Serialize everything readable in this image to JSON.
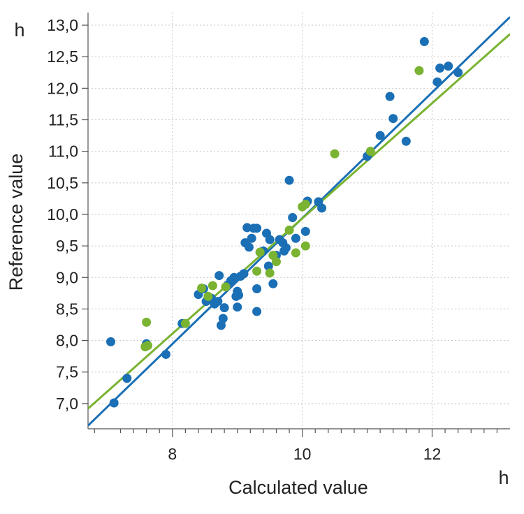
{
  "chart_data": {
    "type": "scatter",
    "x_unit": "h",
    "y_unit": "h",
    "xlabel": "Calculated value",
    "ylabel": "Reference value",
    "xlim": [
      6.7,
      13.2
    ],
    "ylim": [
      6.6,
      13.2
    ],
    "x_ticks": [
      {
        "value": 8,
        "label": "8"
      },
      {
        "value": 10,
        "label": "10"
      },
      {
        "value": 12,
        "label": "12"
      }
    ],
    "y_ticks": [
      {
        "value": 7.0,
        "label": "7,0"
      },
      {
        "value": 7.5,
        "label": "7,5"
      },
      {
        "value": 8.0,
        "label": "8,0"
      },
      {
        "value": 8.5,
        "label": "8,5"
      },
      {
        "value": 9.0,
        "label": "9,0"
      },
      {
        "value": 9.5,
        "label": "9,5"
      },
      {
        "value": 10.0,
        "label": "10,0"
      },
      {
        "value": 10.5,
        "label": "10,5"
      },
      {
        "value": 11.0,
        "label": "11,0"
      },
      {
        "value": 11.5,
        "label": "11,5"
      },
      {
        "value": 12.0,
        "label": "12,0"
      },
      {
        "value": 12.5,
        "label": "12,5"
      },
      {
        "value": 13.0,
        "label": "13,0"
      }
    ],
    "x_minor_ticks": [
      6.8,
      7.2,
      7.4,
      7.6,
      7.8,
      8.2,
      8.4,
      8.6,
      8.8,
      9.0,
      9.2,
      9.4,
      9.6,
      9.8,
      10.2,
      10.4,
      10.6,
      10.8,
      11.0,
      11.2,
      11.4,
      11.6,
      11.8,
      12.2,
      12.4,
      12.6,
      12.8,
      13.0
    ],
    "grid": true,
    "series": [
      {
        "color": "#1a6fb5",
        "points": [
          [
            7.05,
            7.98
          ],
          [
            7.1,
            7.01
          ],
          [
            7.3,
            7.4
          ],
          [
            7.6,
            7.95
          ],
          [
            7.9,
            7.78
          ],
          [
            8.15,
            8.27
          ],
          [
            8.4,
            8.73
          ],
          [
            8.48,
            8.82
          ],
          [
            8.52,
            8.62
          ],
          [
            8.6,
            8.67
          ],
          [
            8.65,
            8.58
          ],
          [
            8.7,
            8.62
          ],
          [
            8.72,
            9.03
          ],
          [
            8.75,
            8.24
          ],
          [
            8.78,
            8.35
          ],
          [
            8.8,
            8.52
          ],
          [
            8.85,
            8.88
          ],
          [
            8.9,
            8.95
          ],
          [
            8.95,
            9.0
          ],
          [
            8.98,
            8.7
          ],
          [
            9.0,
            8.53
          ],
          [
            9.0,
            8.78
          ],
          [
            9.02,
            8.72
          ],
          [
            9.05,
            9.02
          ],
          [
            9.1,
            9.06
          ],
          [
            9.12,
            9.55
          ],
          [
            9.15,
            9.79
          ],
          [
            9.18,
            9.48
          ],
          [
            9.22,
            9.62
          ],
          [
            9.25,
            9.78
          ],
          [
            9.3,
            9.78
          ],
          [
            9.3,
            8.82
          ],
          [
            9.3,
            8.46
          ],
          [
            9.35,
            9.4
          ],
          [
            9.4,
            9.42
          ],
          [
            9.45,
            9.7
          ],
          [
            9.48,
            9.18
          ],
          [
            9.5,
            9.6
          ],
          [
            9.55,
            8.9
          ],
          [
            9.6,
            9.35
          ],
          [
            9.65,
            9.6
          ],
          [
            9.7,
            9.55
          ],
          [
            9.72,
            9.42
          ],
          [
            9.75,
            9.47
          ],
          [
            9.8,
            10.54
          ],
          [
            9.85,
            9.95
          ],
          [
            9.9,
            9.62
          ],
          [
            10.05,
            9.73
          ],
          [
            10.08,
            10.21
          ],
          [
            10.25,
            10.2
          ],
          [
            10.3,
            10.1
          ],
          [
            11.0,
            10.92
          ],
          [
            11.2,
            11.25
          ],
          [
            11.35,
            11.87
          ],
          [
            11.4,
            11.52
          ],
          [
            11.6,
            11.16
          ],
          [
            11.88,
            12.74
          ],
          [
            12.08,
            12.1
          ],
          [
            12.12,
            12.32
          ],
          [
            12.25,
            12.35
          ],
          [
            12.4,
            12.25
          ]
        ],
        "fit": [
          [
            6.7,
            6.65
          ],
          [
            13.2,
            13.13
          ]
        ]
      },
      {
        "color": "#7ab331",
        "points": [
          [
            7.58,
            7.9
          ],
          [
            7.6,
            8.29
          ],
          [
            7.62,
            7.92
          ],
          [
            8.2,
            8.27
          ],
          [
            8.45,
            8.83
          ],
          [
            8.55,
            8.7
          ],
          [
            8.62,
            8.87
          ],
          [
            8.82,
            8.85
          ],
          [
            9.3,
            9.1
          ],
          [
            9.35,
            9.4
          ],
          [
            9.5,
            9.07
          ],
          [
            9.55,
            9.35
          ],
          [
            9.6,
            9.25
          ],
          [
            9.8,
            9.75
          ],
          [
            9.9,
            9.39
          ],
          [
            10.0,
            10.12
          ],
          [
            10.05,
            10.16
          ],
          [
            10.05,
            9.5
          ],
          [
            10.5,
            10.96
          ],
          [
            11.05,
            11.0
          ],
          [
            11.8,
            12.28
          ]
        ],
        "fit": [
          [
            6.7,
            6.92
          ],
          [
            13.2,
            12.86
          ]
        ]
      }
    ]
  }
}
